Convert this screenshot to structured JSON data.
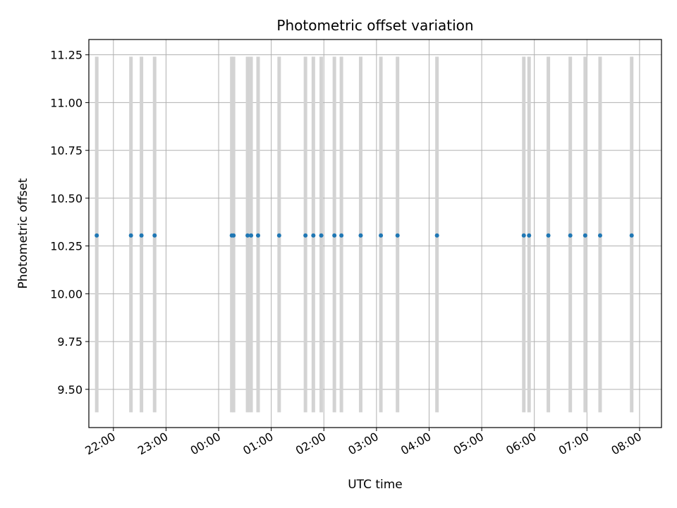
{
  "chart_data": {
    "type": "scatter",
    "title": "Photometric offset variation",
    "xlabel": "UTC time",
    "ylabel": "Photometric offset",
    "grid": true,
    "x_axis": "time",
    "xlim": [
      "21:32",
      "08:25"
    ],
    "ylim": [
      9.3,
      11.33
    ],
    "x_ticks": [
      "22:00",
      "23:00",
      "00:00",
      "01:00",
      "02:00",
      "03:00",
      "04:00",
      "05:00",
      "06:00",
      "07:00",
      "08:00"
    ],
    "y_ticks": [
      "9.50",
      "9.75",
      "10.00",
      "10.25",
      "10.50",
      "10.75",
      "11.00",
      "11.25"
    ],
    "bar_range": [
      9.38,
      11.24
    ],
    "colors": {
      "points": "#1f77b4",
      "bars": "#d3d3d3",
      "grid": "#b0b0b0"
    },
    "points": [
      {
        "x": "21:41",
        "y": 10.305
      },
      {
        "x": "22:20",
        "y": 10.305
      },
      {
        "x": "22:32",
        "y": 10.305
      },
      {
        "x": "22:47",
        "y": 10.305
      },
      {
        "x": "00:15",
        "y": 10.305
      },
      {
        "x": "00:17",
        "y": 10.305
      },
      {
        "x": "00:33",
        "y": 10.305
      },
      {
        "x": "00:37",
        "y": 10.305
      },
      {
        "x": "00:45",
        "y": 10.305
      },
      {
        "x": "01:09",
        "y": 10.305
      },
      {
        "x": "01:39",
        "y": 10.305
      },
      {
        "x": "01:48",
        "y": 10.305
      },
      {
        "x": "01:57",
        "y": 10.305
      },
      {
        "x": "02:12",
        "y": 10.305
      },
      {
        "x": "02:20",
        "y": 10.305
      },
      {
        "x": "02:42",
        "y": 10.305
      },
      {
        "x": "03:05",
        "y": 10.305
      },
      {
        "x": "03:24",
        "y": 10.305
      },
      {
        "x": "04:09",
        "y": 10.305
      },
      {
        "x": "05:48",
        "y": 10.305
      },
      {
        "x": "05:54",
        "y": 10.305
      },
      {
        "x": "06:16",
        "y": 10.305
      },
      {
        "x": "06:41",
        "y": 10.305
      },
      {
        "x": "06:58",
        "y": 10.305
      },
      {
        "x": "07:15",
        "y": 10.305
      },
      {
        "x": "07:51",
        "y": 10.305
      }
    ]
  }
}
